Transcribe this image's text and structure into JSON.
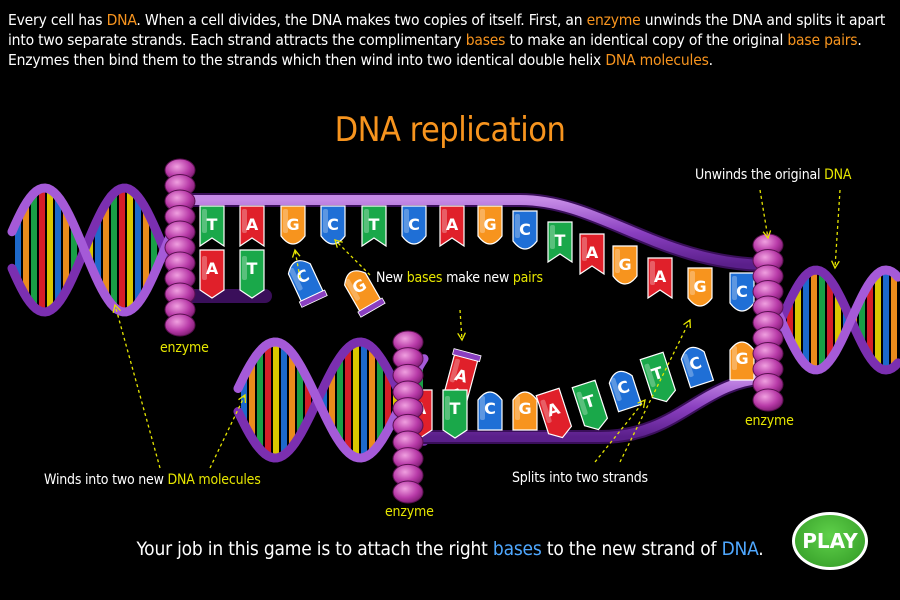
{
  "intro": {
    "s1a": "Every cell has ",
    "s1b": "DNA",
    "s1c": ". When a cell divides, the DNA makes two copies of itself. First, an ",
    "s1d": "enzyme",
    "s1e": " unwinds the DNA and splits it apart into two separate strands. Each strand attracts the complimentary ",
    "s1f": "bases",
    "s1g": " to make an identical copy of the original ",
    "s1h": "base pairs",
    "s1i": ". Enzymes then bind them to the strands which then wind into two identical  double helix ",
    "s1j": "DNA molecules",
    "s1k": "."
  },
  "title": "DNA replication",
  "labels": {
    "unwinds_a": "Unwinds the original ",
    "unwinds_b": "DNA",
    "newbases_a": "New ",
    "newbases_b": "bases",
    "newbases_c": " make new ",
    "newbases_d": "pairs",
    "enzyme_left": "enzyme",
    "enzyme_mid": "enzyme",
    "enzyme_right": "enzyme",
    "winds_a": "Winds into two new ",
    "winds_b": "DNA molecules",
    "splits": "Splits into two strands"
  },
  "top_strand_bases": [
    "T",
    "A",
    "G",
    "C",
    "T",
    "C",
    "A",
    "G",
    "C",
    "T",
    "A",
    "G",
    "A",
    "G",
    "C"
  ],
  "top_pair_bases": [
    "A",
    "T"
  ],
  "free_bases": [
    "C",
    "G",
    "A"
  ],
  "bottom_strand_bases": [
    "A",
    "T",
    "C",
    "G",
    "A",
    "T",
    "C",
    "T",
    "C",
    "G"
  ],
  "base_colors": {
    "A": "#e0202a",
    "T": "#1aa84a",
    "G": "#f7941e",
    "C": "#1f6fd6"
  },
  "bottom": {
    "a": "Your job in this game is to attach the right ",
    "b": "bases",
    "c": " to the new strand of ",
    "d": "DNA",
    "e": "."
  },
  "play_label": "PLAY"
}
